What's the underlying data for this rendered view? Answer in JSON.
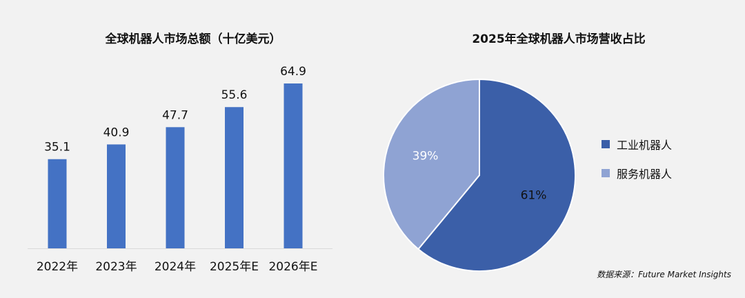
{
  "bar_chart_title": "全球机器人市场总额（十亿美元）",
  "pie_chart_title": "2025年全球机器人市场营收占比",
  "source_note": "数据来源：Future Market Insights",
  "colors": {
    "bar": "#4472c4",
    "industrial": "#3b5fa8",
    "service": "#8fa3d3",
    "axis": "#d9d9d9"
  },
  "chart_data": [
    {
      "type": "bar",
      "title": "全球机器人市场总额（十亿美元）",
      "categories": [
        "2022年",
        "2023年",
        "2024年",
        "2025年E",
        "2026年E"
      ],
      "values": [
        35.1,
        40.9,
        47.7,
        55.6,
        64.9
      ],
      "data_labels": [
        "35.1",
        "40.9",
        "47.7",
        "55.6",
        "64.9"
      ],
      "grid": false
    },
    {
      "type": "pie",
      "title": "2025年全球机器人市场营收占比",
      "labels": [
        "工业机器人",
        "服务机器人"
      ],
      "values": [
        61,
        39
      ],
      "data_labels": [
        "61%",
        "39%"
      ],
      "legend": "right"
    }
  ]
}
